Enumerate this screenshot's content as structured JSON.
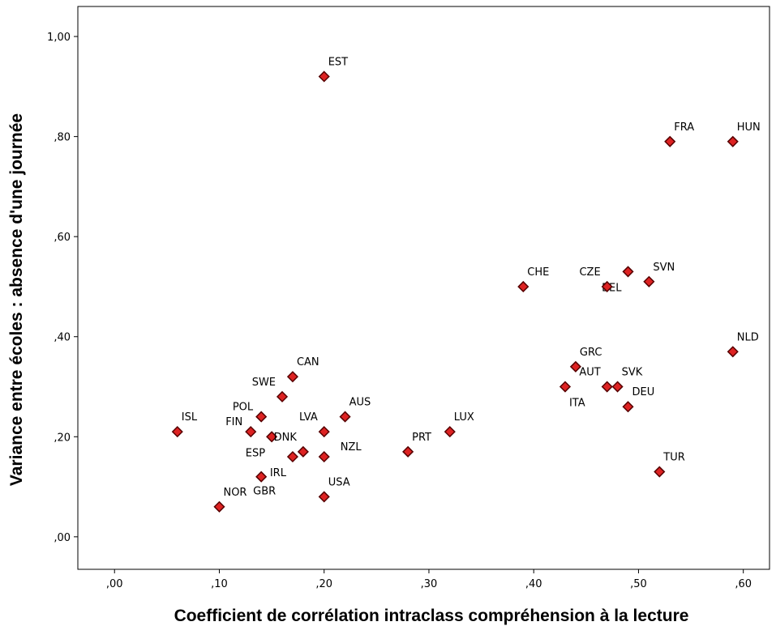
{
  "chart_data": {
    "type": "scatter",
    "title": "",
    "xlabel": "Coefficient de corrélation intraclass compréhension à la lecture",
    "ylabel": "Variance entre écoles : absence d'une journée",
    "xlim": [
      -0.035,
      0.625
    ],
    "ylim": [
      -0.065,
      1.06
    ],
    "x_ticks": [
      0.0,
      0.1,
      0.2,
      0.3,
      0.4,
      0.5,
      0.6
    ],
    "x_tick_labels": [
      ",00",
      ",10",
      ",20",
      ",30",
      ",40",
      ",50",
      ",60"
    ],
    "y_ticks": [
      0.0,
      0.2,
      0.4,
      0.6,
      0.8,
      1.0
    ],
    "y_tick_labels": [
      ",00",
      ",20",
      ",40",
      ",60",
      ",80",
      "1,00"
    ],
    "grid": false,
    "marker": "diamond",
    "marker_color": "#dd2222",
    "marker_edge_color": "#550000",
    "points": [
      {
        "label": "EST",
        "x": 0.2,
        "y": 0.92,
        "pos": "above"
      },
      {
        "label": "FRA",
        "x": 0.53,
        "y": 0.79,
        "pos": "above"
      },
      {
        "label": "HUN",
        "x": 0.59,
        "y": 0.79,
        "pos": "above"
      },
      {
        "label": "SVN",
        "x": 0.51,
        "y": 0.51,
        "pos": "above"
      },
      {
        "label": "BEL",
        "x": 0.49,
        "y": 0.53,
        "pos": "below-left"
      },
      {
        "label": "CZE",
        "x": 0.47,
        "y": 0.5,
        "pos": "above-left"
      },
      {
        "label": "CHE",
        "x": 0.39,
        "y": 0.5,
        "pos": "above"
      },
      {
        "label": "NLD",
        "x": 0.59,
        "y": 0.37,
        "pos": "above"
      },
      {
        "label": "GRC",
        "x": 0.44,
        "y": 0.34,
        "pos": "above"
      },
      {
        "label": "ITA",
        "x": 0.43,
        "y": 0.3,
        "pos": "below"
      },
      {
        "label": "AUT",
        "x": 0.47,
        "y": 0.3,
        "pos": "above-left"
      },
      {
        "label": "SVK",
        "x": 0.48,
        "y": 0.3,
        "pos": "above"
      },
      {
        "label": "DEU",
        "x": 0.49,
        "y": 0.26,
        "pos": "above"
      },
      {
        "label": "TUR",
        "x": 0.52,
        "y": 0.13,
        "pos": "above"
      },
      {
        "label": "LUX",
        "x": 0.32,
        "y": 0.21,
        "pos": "above"
      },
      {
        "label": "PRT",
        "x": 0.28,
        "y": 0.17,
        "pos": "above"
      },
      {
        "label": "CAN",
        "x": 0.17,
        "y": 0.32,
        "pos": "above"
      },
      {
        "label": "SWE",
        "x": 0.16,
        "y": 0.28,
        "pos": "above-left"
      },
      {
        "label": "AUS",
        "x": 0.22,
        "y": 0.24,
        "pos": "above"
      },
      {
        "label": "POL",
        "x": 0.14,
        "y": 0.24,
        "pos": "left"
      },
      {
        "label": "FIN",
        "x": 0.13,
        "y": 0.21,
        "pos": "left"
      },
      {
        "label": "LVA",
        "x": 0.2,
        "y": 0.21,
        "pos": "above-left"
      },
      {
        "label": "ISL",
        "x": 0.06,
        "y": 0.21,
        "pos": "above"
      },
      {
        "label": "ESP",
        "x": 0.15,
        "y": 0.2,
        "pos": "below-left"
      },
      {
        "label": "DNK",
        "x": 0.18,
        "y": 0.17,
        "pos": "above-left"
      },
      {
        "label": "NZL",
        "x": 0.2,
        "y": 0.16,
        "pos": "above-right"
      },
      {
        "label": "IRL",
        "x": 0.17,
        "y": 0.16,
        "pos": "below-left"
      },
      {
        "label": "NOR",
        "x": 0.1,
        "y": 0.06,
        "pos": "above"
      },
      {
        "label": "GBR",
        "x": 0.14,
        "y": 0.12,
        "pos": "below-right"
      },
      {
        "label": "USA",
        "x": 0.2,
        "y": 0.08,
        "pos": "above"
      }
    ]
  }
}
